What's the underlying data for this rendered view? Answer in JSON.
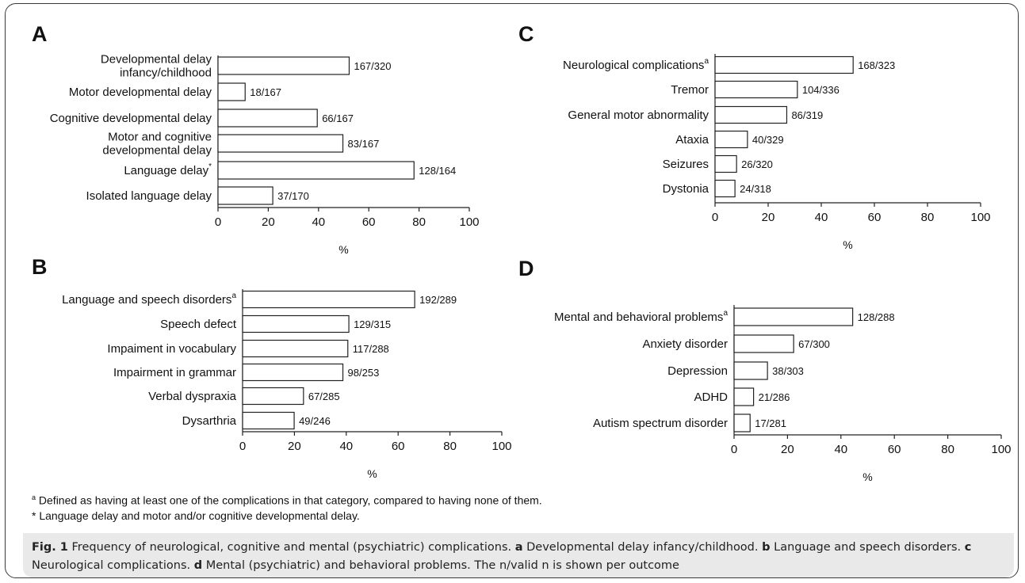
{
  "footnotes": {
    "a": {
      "mark": "a",
      "text": " Defined as having at least one of the complications in that category, compared to having none of them."
    },
    "star": {
      "text": "* Language delay and motor and/or cognitive developmental delay."
    }
  },
  "caption": {
    "fig_label": "Fig. 1",
    "main": " Frequency of neurological, cognitive and mental (psychiatric) complications. ",
    "a_letter": "a",
    "a_text": " Developmental delay infancy/childhood. ",
    "b_letter": "b",
    "b_text": " Language and speech disorders. ",
    "c_letter": "c",
    "c_text": " Neurological complications. ",
    "d_letter": "d",
    "d_text": " Mental (psychiatric) and behavioral problems. The n/valid n is shown per outcome"
  },
  "chart_data": [
    {
      "panel": "A",
      "type": "bar",
      "orientation": "horizontal",
      "xlabel": "%",
      "xlim": [
        0,
        100
      ],
      "xticks": [
        0,
        20,
        40,
        60,
        80,
        100
      ],
      "categories": [
        {
          "lines": [
            "Developmental delay",
            "infancy/childhood"
          ],
          "sup": ""
        },
        {
          "lines": [
            "Motor developmental delay"
          ],
          "sup": ""
        },
        {
          "lines": [
            "Cognitive developmental delay"
          ],
          "sup": ""
        },
        {
          "lines": [
            "Motor and cognitive",
            "developmental delay"
          ],
          "sup": ""
        },
        {
          "lines": [
            "Language delay"
          ],
          "sup": "*"
        },
        {
          "lines": [
            "Isolated language delay"
          ],
          "sup": ""
        }
      ],
      "values": [
        52.2,
        10.8,
        39.5,
        49.7,
        78.0,
        21.8
      ],
      "labels": [
        "167/320",
        "18/167",
        "66/167",
        "83/167",
        "128/164",
        "37/170"
      ]
    },
    {
      "panel": "B",
      "type": "bar",
      "orientation": "horizontal",
      "xlabel": "%",
      "xlim": [
        0,
        100
      ],
      "xticks": [
        0,
        20,
        40,
        60,
        80,
        100
      ],
      "categories": [
        {
          "lines": [
            "Language and speech disorders"
          ],
          "sup": "a"
        },
        {
          "lines": [
            "Speech defect"
          ],
          "sup": ""
        },
        {
          "lines": [
            "Impaiment in vocabulary"
          ],
          "sup": ""
        },
        {
          "lines": [
            "Impairment in grammar"
          ],
          "sup": ""
        },
        {
          "lines": [
            "Verbal dyspraxia"
          ],
          "sup": ""
        },
        {
          "lines": [
            "Dysarthria"
          ],
          "sup": ""
        }
      ],
      "values": [
        66.4,
        41.0,
        40.6,
        38.7,
        23.5,
        19.9
      ],
      "labels": [
        "192/289",
        "129/315",
        "117/288",
        "98/253",
        "67/285",
        "49/246"
      ]
    },
    {
      "panel": "C",
      "type": "bar",
      "orientation": "horizontal",
      "xlabel": "%",
      "xlim": [
        0,
        100
      ],
      "xticks": [
        0,
        20,
        40,
        60,
        80,
        100
      ],
      "categories": [
        {
          "lines": [
            "Neurological complications"
          ],
          "sup": "a"
        },
        {
          "lines": [
            "Tremor"
          ],
          "sup": ""
        },
        {
          "lines": [
            "General motor abnormality"
          ],
          "sup": ""
        },
        {
          "lines": [
            "Ataxia"
          ],
          "sup": ""
        },
        {
          "lines": [
            "Seizures"
          ],
          "sup": ""
        },
        {
          "lines": [
            "Dystonia"
          ],
          "sup": ""
        }
      ],
      "values": [
        52.0,
        31.0,
        27.0,
        12.2,
        8.1,
        7.5
      ],
      "labels": [
        "168/323",
        "104/336",
        "86/319",
        "40/329",
        "26/320",
        "24/318"
      ]
    },
    {
      "panel": "D",
      "type": "bar",
      "orientation": "horizontal",
      "xlabel": "%",
      "xlim": [
        0,
        100
      ],
      "xticks": [
        0,
        20,
        40,
        60,
        80,
        100
      ],
      "categories": [
        {
          "lines": [
            "Mental and behavioral problems"
          ],
          "sup": "a"
        },
        {
          "lines": [
            "Anxiety disorder"
          ],
          "sup": ""
        },
        {
          "lines": [
            "Depression"
          ],
          "sup": ""
        },
        {
          "lines": [
            "ADHD"
          ],
          "sup": ""
        },
        {
          "lines": [
            "Autism spectrum disorder"
          ],
          "sup": ""
        }
      ],
      "values": [
        44.4,
        22.3,
        12.5,
        7.3,
        6.0
      ],
      "labels": [
        "128/288",
        "67/300",
        "38/303",
        "21/286",
        "17/281"
      ]
    }
  ]
}
